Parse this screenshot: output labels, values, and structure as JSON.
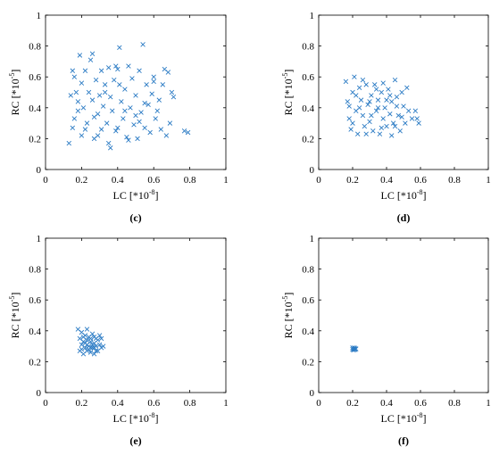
{
  "chart_data": [
    {
      "type": "scatter",
      "panel_label": "(c)",
      "xlabel": "LC [*10",
      "xlabel_exp": "-8",
      "xlabel_end": "]",
      "ylabel": "RC [*10",
      "ylabel_exp": "-5",
      "ylabel_end": "]",
      "xlim": [
        0,
        1
      ],
      "ylim": [
        0,
        1
      ],
      "xticks": [
        "0",
        "0.2",
        "0.4",
        "0.6",
        "0.8",
        "1"
      ],
      "yticks": [
        "0",
        "0.2",
        "0.4",
        "0.6",
        "0.8",
        "1"
      ],
      "marker": "x",
      "color": "#2b7bc4",
      "points": [
        [
          0.13,
          0.17
        ],
        [
          0.14,
          0.48
        ],
        [
          0.15,
          0.64
        ],
        [
          0.16,
          0.6
        ],
        [
          0.16,
          0.33
        ],
        [
          0.17,
          0.5
        ],
        [
          0.15,
          0.27
        ],
        [
          0.18,
          0.44
        ],
        [
          0.19,
          0.74
        ],
        [
          0.2,
          0.56
        ],
        [
          0.2,
          0.22
        ],
        [
          0.21,
          0.4
        ],
        [
          0.22,
          0.64
        ],
        [
          0.23,
          0.3
        ],
        [
          0.24,
          0.5
        ],
        [
          0.25,
          0.71
        ],
        [
          0.26,
          0.75
        ],
        [
          0.26,
          0.45
        ],
        [
          0.27,
          0.2
        ],
        [
          0.28,
          0.58
        ],
        [
          0.29,
          0.36
        ],
        [
          0.3,
          0.48
        ],
        [
          0.31,
          0.64
        ],
        [
          0.31,
          0.26
        ],
        [
          0.32,
          0.41
        ],
        [
          0.33,
          0.55
        ],
        [
          0.34,
          0.3
        ],
        [
          0.35,
          0.66
        ],
        [
          0.35,
          0.17
        ],
        [
          0.36,
          0.47
        ],
        [
          0.37,
          0.38
        ],
        [
          0.38,
          0.58
        ],
        [
          0.39,
          0.25
        ],
        [
          0.39,
          0.67
        ],
        [
          0.4,
          0.65
        ],
        [
          0.41,
          0.79
        ],
        [
          0.42,
          0.44
        ],
        [
          0.43,
          0.33
        ],
        [
          0.44,
          0.52
        ],
        [
          0.45,
          0.21
        ],
        [
          0.46,
          0.67
        ],
        [
          0.47,
          0.4
        ],
        [
          0.48,
          0.59
        ],
        [
          0.49,
          0.29
        ],
        [
          0.5,
          0.48
        ],
        [
          0.51,
          0.2
        ],
        [
          0.52,
          0.64
        ],
        [
          0.53,
          0.37
        ],
        [
          0.54,
          0.81
        ],
        [
          0.55,
          0.27
        ],
        [
          0.56,
          0.55
        ],
        [
          0.57,
          0.42
        ],
        [
          0.58,
          0.24
        ],
        [
          0.59,
          0.49
        ],
        [
          0.6,
          0.6
        ],
        [
          0.61,
          0.33
        ],
        [
          0.62,
          0.38
        ],
        [
          0.63,
          0.45
        ],
        [
          0.64,
          0.26
        ],
        [
          0.65,
          0.55
        ],
        [
          0.66,
          0.65
        ],
        [
          0.67,
          0.22
        ],
        [
          0.68,
          0.63
        ],
        [
          0.69,
          0.3
        ],
        [
          0.7,
          0.5
        ],
        [
          0.71,
          0.47
        ],
        [
          0.77,
          0.25
        ],
        [
          0.79,
          0.24
        ],
        [
          0.22,
          0.26
        ],
        [
          0.27,
          0.34
        ],
        [
          0.33,
          0.5
        ],
        [
          0.4,
          0.27
        ],
        [
          0.44,
          0.38
        ],
        [
          0.5,
          0.35
        ],
        [
          0.55,
          0.43
        ],
        [
          0.6,
          0.57
        ],
        [
          0.36,
          0.14
        ],
        [
          0.46,
          0.19
        ],
        [
          0.52,
          0.31
        ],
        [
          0.18,
          0.38
        ],
        [
          0.29,
          0.22
        ],
        [
          0.41,
          0.55
        ]
      ]
    },
    {
      "type": "scatter",
      "panel_label": "(d)",
      "xlabel": "LC [*10",
      "xlabel_exp": "-8",
      "xlabel_end": "]",
      "ylabel": "RC [*10",
      "ylabel_exp": "-5",
      "ylabel_end": "]",
      "xlim": [
        0,
        1
      ],
      "ylim": [
        0,
        1
      ],
      "xticks": [
        "0",
        "0.2",
        "0.4",
        "0.6",
        "0.8",
        "1"
      ],
      "yticks": [
        "0",
        "0.2",
        "0.4",
        "0.6",
        "0.8",
        "1"
      ],
      "marker": "x",
      "color": "#2b7bc4",
      "points": [
        [
          0.16,
          0.57
        ],
        [
          0.17,
          0.44
        ],
        [
          0.18,
          0.33
        ],
        [
          0.19,
          0.26
        ],
        [
          0.2,
          0.5
        ],
        [
          0.21,
          0.6
        ],
        [
          0.22,
          0.38
        ],
        [
          0.23,
          0.23
        ],
        [
          0.24,
          0.53
        ],
        [
          0.25,
          0.45
        ],
        [
          0.26,
          0.35
        ],
        [
          0.27,
          0.28
        ],
        [
          0.28,
          0.55
        ],
        [
          0.29,
          0.42
        ],
        [
          0.3,
          0.31
        ],
        [
          0.31,
          0.48
        ],
        [
          0.32,
          0.25
        ],
        [
          0.33,
          0.55
        ],
        [
          0.34,
          0.38
        ],
        [
          0.35,
          0.45
        ],
        [
          0.36,
          0.23
        ],
        [
          0.37,
          0.5
        ],
        [
          0.38,
          0.33
        ],
        [
          0.39,
          0.4
        ],
        [
          0.4,
          0.28
        ],
        [
          0.41,
          0.52
        ],
        [
          0.42,
          0.36
        ],
        [
          0.43,
          0.44
        ],
        [
          0.44,
          0.3
        ],
        [
          0.45,
          0.58
        ],
        [
          0.46,
          0.47
        ],
        [
          0.47,
          0.35
        ],
        [
          0.48,
          0.25
        ],
        [
          0.49,
          0.5
        ],
        [
          0.5,
          0.41
        ],
        [
          0.51,
          0.3
        ],
        [
          0.52,
          0.53
        ],
        [
          0.53,
          0.38
        ],
        [
          0.55,
          0.33
        ],
        [
          0.57,
          0.38
        ],
        [
          0.58,
          0.33
        ],
        [
          0.59,
          0.3
        ],
        [
          0.2,
          0.3
        ],
        [
          0.24,
          0.4
        ],
        [
          0.28,
          0.23
        ],
        [
          0.31,
          0.35
        ],
        [
          0.34,
          0.52
        ],
        [
          0.37,
          0.27
        ],
        [
          0.4,
          0.45
        ],
        [
          0.43,
          0.22
        ],
        [
          0.46,
          0.41
        ],
        [
          0.49,
          0.34
        ],
        [
          0.26,
          0.58
        ],
        [
          0.22,
          0.48
        ],
        [
          0.35,
          0.4
        ],
        [
          0.42,
          0.48
        ],
        [
          0.45,
          0.28
        ],
        [
          0.3,
          0.44
        ],
        [
          0.38,
          0.56
        ],
        [
          0.18,
          0.41
        ]
      ]
    },
    {
      "type": "scatter",
      "panel_label": "(e)",
      "xlabel": "LC [*10",
      "xlabel_exp": "-8",
      "xlabel_end": "]",
      "ylabel": "RC [*10",
      "ylabel_exp": "-5",
      "ylabel_end": "]",
      "xlim": [
        0,
        1
      ],
      "ylim": [
        0,
        1
      ],
      "xticks": [
        "0",
        "0.2",
        "0.4",
        "0.6",
        "0.8",
        "1"
      ],
      "yticks": [
        "0",
        "0.2",
        "0.4",
        "0.6",
        "0.8",
        "1"
      ],
      "marker": "x",
      "color": "#2b7bc4",
      "points": [
        [
          0.18,
          0.41
        ],
        [
          0.19,
          0.27
        ],
        [
          0.19,
          0.35
        ],
        [
          0.2,
          0.31
        ],
        [
          0.2,
          0.39
        ],
        [
          0.21,
          0.25
        ],
        [
          0.21,
          0.33
        ],
        [
          0.22,
          0.29
        ],
        [
          0.22,
          0.37
        ],
        [
          0.23,
          0.27
        ],
        [
          0.23,
          0.34
        ],
        [
          0.23,
          0.41
        ],
        [
          0.24,
          0.3
        ],
        [
          0.24,
          0.36
        ],
        [
          0.25,
          0.26
        ],
        [
          0.25,
          0.33
        ],
        [
          0.26,
          0.29
        ],
        [
          0.26,
          0.38
        ],
        [
          0.27,
          0.32
        ],
        [
          0.27,
          0.25
        ],
        [
          0.28,
          0.35
        ],
        [
          0.28,
          0.3
        ],
        [
          0.29,
          0.27
        ],
        [
          0.29,
          0.34
        ],
        [
          0.3,
          0.31
        ],
        [
          0.3,
          0.37
        ],
        [
          0.31,
          0.29
        ],
        [
          0.31,
          0.35
        ],
        [
          0.32,
          0.3
        ],
        [
          0.2,
          0.28
        ],
        [
          0.21,
          0.36
        ],
        [
          0.22,
          0.32
        ],
        [
          0.24,
          0.28
        ],
        [
          0.25,
          0.35
        ],
        [
          0.26,
          0.31
        ],
        [
          0.27,
          0.36
        ],
        [
          0.28,
          0.27
        ],
        [
          0.23,
          0.31
        ],
        [
          0.25,
          0.29
        ],
        [
          0.27,
          0.29
        ]
      ]
    },
    {
      "type": "scatter",
      "panel_label": "(f)",
      "xlabel": "LC [*10",
      "xlabel_exp": "-8",
      "xlabel_end": "]",
      "ylabel": "RC [*10",
      "ylabel_exp": "-5",
      "ylabel_end": "]",
      "xlim": [
        0,
        1
      ],
      "ylim": [
        0,
        1
      ],
      "xticks": [
        "0",
        "0.2",
        "0.4",
        "0.6",
        "0.8",
        "1"
      ],
      "yticks": [
        "0",
        "0.2",
        "0.4",
        "0.6",
        "0.8",
        "1"
      ],
      "marker": "x",
      "color": "#2b7bc4",
      "points": [
        [
          0.2,
          0.28
        ],
        [
          0.205,
          0.285
        ],
        [
          0.21,
          0.28
        ],
        [
          0.215,
          0.285
        ],
        [
          0.2,
          0.29
        ],
        [
          0.21,
          0.29
        ],
        [
          0.205,
          0.275
        ],
        [
          0.215,
          0.278
        ],
        [
          0.22,
          0.283
        ],
        [
          0.208,
          0.282
        ]
      ]
    }
  ]
}
